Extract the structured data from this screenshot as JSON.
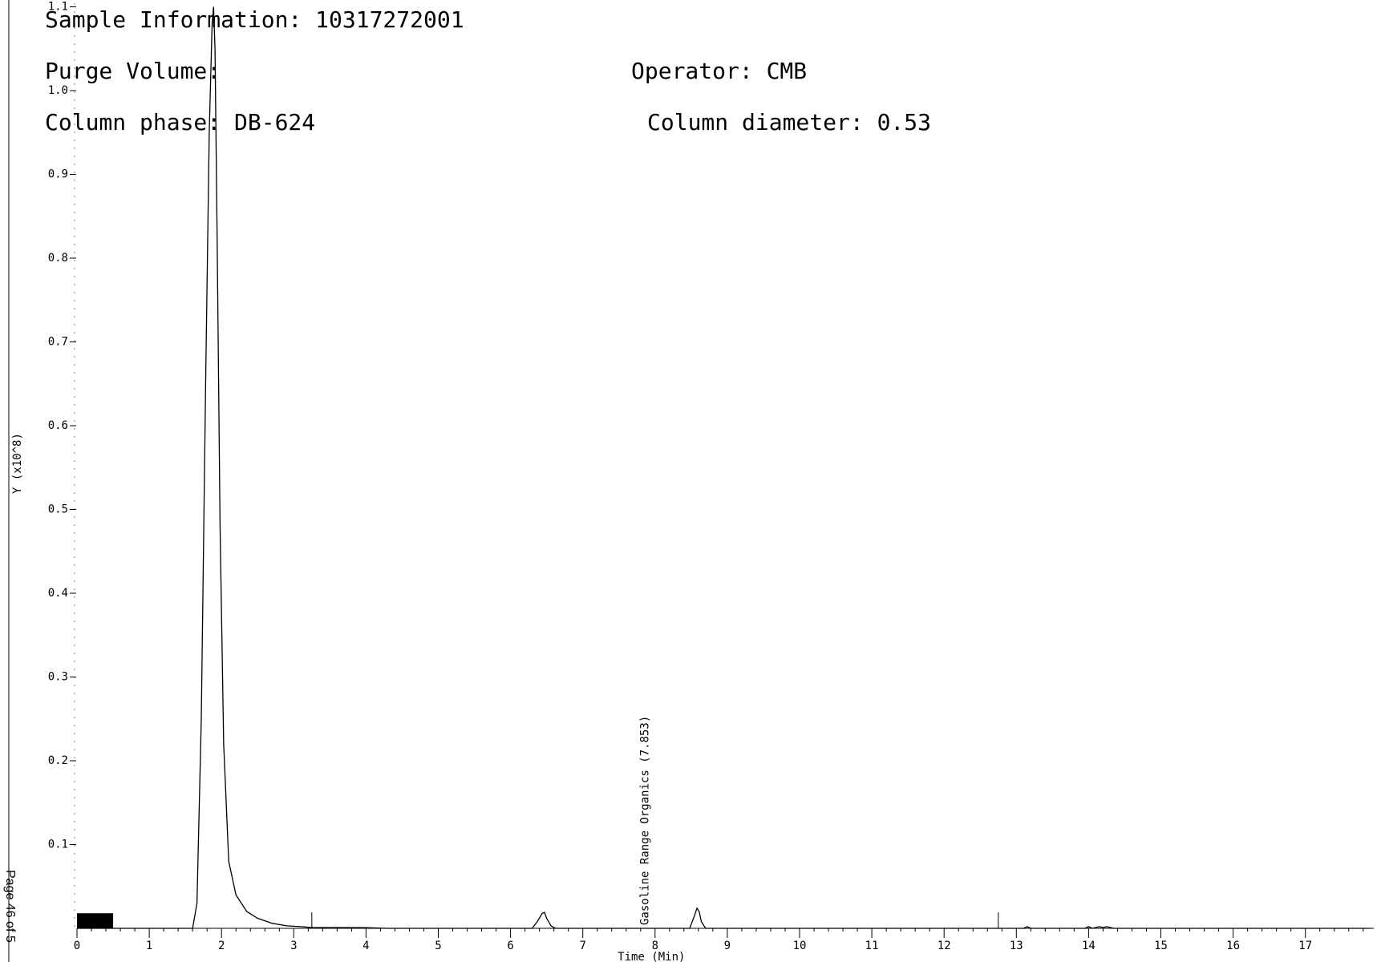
{
  "header": {
    "sample_info": "Sample Information: 10317272001",
    "purge_volume": "Purge Volume:",
    "operator": "Operator: CMB",
    "column_phase": "Column phase: DB-624",
    "column_diameter": "Column diameter: 0.53"
  },
  "page_label": "Page 46 of 5",
  "chart_data": {
    "type": "line",
    "xlabel": "Time (Min)",
    "ylabel": "Y (x10^8)",
    "xlim": [
      0,
      18
    ],
    "ylim": [
      0,
      1.1
    ],
    "x_ticks": [
      0,
      1,
      2,
      3,
      4,
      5,
      6,
      7,
      8,
      9,
      10,
      11,
      12,
      13,
      14,
      15,
      16,
      17
    ],
    "y_ticks": [
      0.1,
      0.2,
      0.3,
      0.4,
      0.5,
      0.6,
      0.7,
      0.8,
      0.9,
      1.0,
      1.1
    ],
    "y_tick_labels": [
      "0.1",
      "0.2",
      "0.3",
      "0.4",
      "0.5",
      "0.6",
      "0.7",
      "0.8",
      "0.9",
      "1.0",
      "1.1"
    ],
    "grid": false,
    "series": [
      {
        "color": "#000000",
        "x": [
          0,
          1.6,
          1.66,
          1.72,
          1.78,
          1.83,
          1.87,
          1.89,
          1.91,
          1.94,
          1.98,
          2.03,
          2.1,
          2.2,
          2.35,
          2.5,
          2.7,
          2.9,
          3.1,
          3.25,
          3.5,
          4.0,
          4.3,
          6.3,
          6.37,
          6.44,
          6.47,
          6.5,
          6.56,
          6.62,
          8.48,
          8.54,
          8.58,
          8.61,
          8.64,
          8.7,
          13.1,
          13.15,
          13.2,
          13.95,
          14.0,
          14.05,
          14.15,
          14.2,
          14.25,
          14.35,
          17.9
        ],
        "y": [
          0,
          0,
          0.03,
          0.25,
          0.65,
          0.95,
          1.08,
          1.1,
          1.05,
          0.82,
          0.48,
          0.22,
          0.08,
          0.04,
          0.02,
          0.012,
          0.006,
          0.003,
          0.002,
          0.001,
          0.001,
          0.0008,
          0,
          0,
          0.008,
          0.018,
          0.019,
          0.012,
          0.003,
          0,
          0,
          0.014,
          0.024,
          0.02,
          0.008,
          0,
          0,
          0.002,
          0,
          0,
          0.002,
          0,
          0.002,
          0.001,
          0.002,
          0,
          0
        ]
      }
    ],
    "annotations": [
      {
        "text": "Gasoline Range Organics (7.853)",
        "x": 7.853
      }
    ],
    "markers": [
      3.25,
      12.75
    ],
    "highlight_band": {
      "x_start": 0,
      "x_end": 0.5,
      "y_top": 0.018,
      "color": "#000000"
    }
  }
}
